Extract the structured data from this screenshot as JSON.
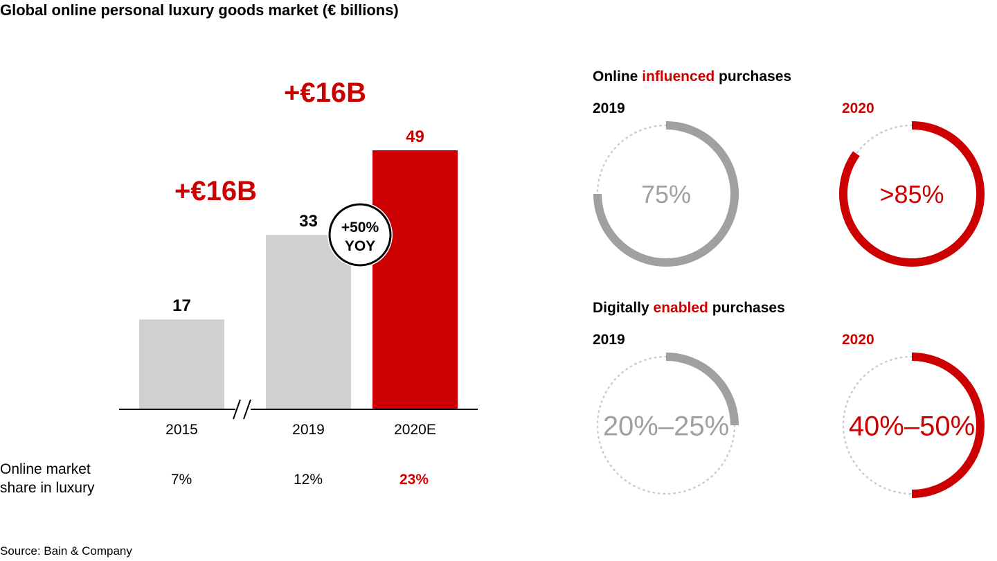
{
  "title": "Global online personal luxury goods market (€ billions)",
  "colors": {
    "accent": "#cc0000",
    "bar_grey": "#d0d0d0",
    "ring_grey": "#a0a0a0",
    "dotted": "#cccccc",
    "text": "#000000"
  },
  "chart_data": [
    {
      "type": "bar",
      "title": "Global online personal luxury goods market (€ billions)",
      "categories": [
        "2015",
        "2019",
        "2020E"
      ],
      "values": [
        17,
        33,
        49
      ],
      "value_labels": [
        "17",
        "33",
        "49"
      ],
      "highlight": [
        false,
        false,
        true
      ],
      "xlabel": "",
      "ylabel": "€ billions",
      "ylim": [
        0,
        49
      ],
      "grid": false,
      "axis_break_between": [
        "2015",
        "2019"
      ],
      "annotations": {
        "growth_2015_2019": "+€16B",
        "growth_2019_2020": "+€16B",
        "yoy_badge_line1": "+50%",
        "yoy_badge_line2": "YOY"
      },
      "row": {
        "label_line1": "Online market",
        "label_line2": "share in luxury",
        "values": [
          "7%",
          "12%",
          "23%"
        ]
      }
    },
    {
      "type": "pie",
      "title_parts": [
        "Online ",
        "influenced",
        " purchases"
      ],
      "series": [
        {
          "name": "2019",
          "label": "75%",
          "value": 75,
          "highlight": false
        },
        {
          "name": "2020",
          "label": ">85%",
          "value": 85,
          "highlight": true
        }
      ]
    },
    {
      "type": "pie",
      "title_parts": [
        "Digitally ",
        "enabled",
        " purchases"
      ],
      "series": [
        {
          "name": "2019",
          "label": "20%–25%",
          "value": 25,
          "highlight": false
        },
        {
          "name": "2020",
          "label": "40%–50%",
          "value": 50,
          "highlight": true
        }
      ]
    }
  ],
  "source": "Source: Bain & Company"
}
